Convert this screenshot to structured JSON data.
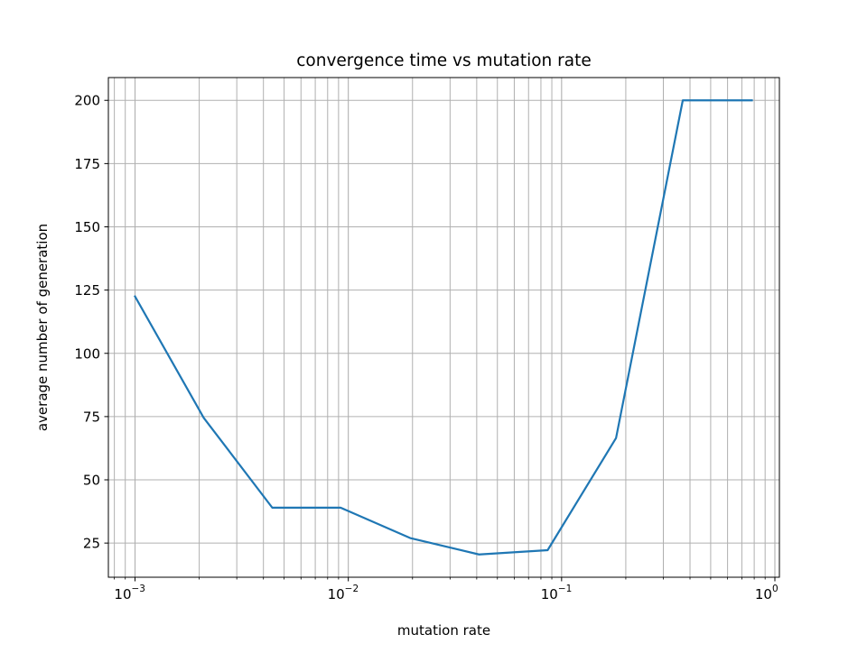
{
  "chart_data": {
    "type": "line",
    "title": "convergence time vs mutation rate",
    "xlabel": "mutation rate",
    "ylabel": "average number of generation",
    "xscale": "log",
    "xlim": [
      0.00075,
      1.05
    ],
    "ylim": [
      11.5,
      209
    ],
    "grid": true,
    "grid_minor_x": true,
    "legend": "none",
    "x_ticks": [
      {
        "value": 0.001,
        "base": "10",
        "exp": "−3"
      },
      {
        "value": 0.01,
        "base": "10",
        "exp": "−2"
      },
      {
        "value": 0.1,
        "base": "10",
        "exp": "−1"
      },
      {
        "value": 1,
        "base": "10",
        "exp": "0"
      }
    ],
    "y_ticks": [
      {
        "value": 25,
        "label": "25"
      },
      {
        "value": 50,
        "label": "50"
      },
      {
        "value": 75,
        "label": "75"
      },
      {
        "value": 100,
        "label": "100"
      },
      {
        "value": 125,
        "label": "125"
      },
      {
        "value": 150,
        "label": "150"
      },
      {
        "value": 175,
        "label": "175"
      },
      {
        "value": 200,
        "label": "200"
      }
    ],
    "series": [
      {
        "color": "#1f77b4",
        "x": [
          0.001,
          0.0021,
          0.0044,
          0.0092,
          0.0195,
          0.041,
          0.086,
          0.18,
          0.37,
          0.78
        ],
        "y": [
          122.5,
          74.5,
          39,
          39,
          27,
          20.5,
          22.2,
          66.5,
          200,
          200
        ]
      }
    ]
  }
}
